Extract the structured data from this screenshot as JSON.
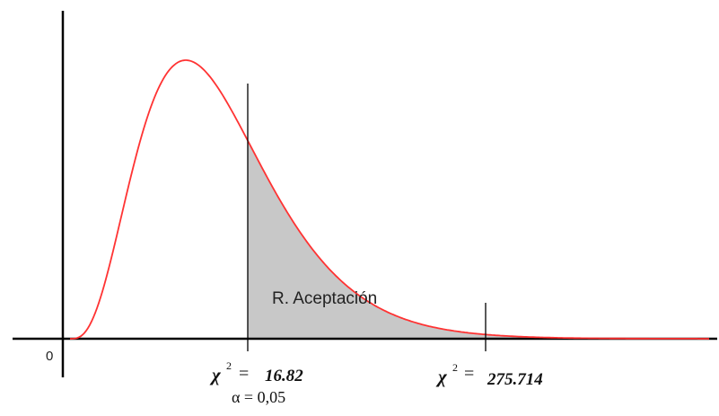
{
  "figure": {
    "origin_label": "0",
    "region_label": "R. Aceptación",
    "critical_1": {
      "symbol": "χ",
      "exponent": "2",
      "equals": "=",
      "value": "16.82"
    },
    "critical_2": {
      "symbol": "χ",
      "exponent": "2",
      "equals": "=",
      "value": "275.714"
    },
    "alpha_label": "α = 0,05",
    "colors": {
      "curve": "#ff3333",
      "shade": "#c8c8c8",
      "axis": "#000000"
    }
  }
}
